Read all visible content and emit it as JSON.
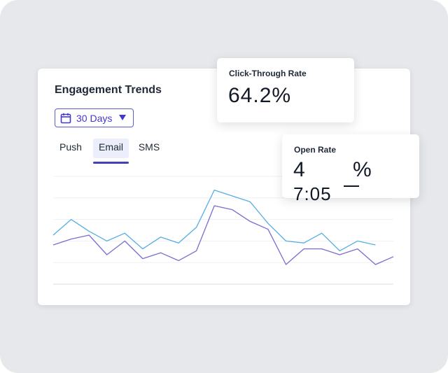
{
  "card": {
    "title": "Engagement Trends",
    "range_select": {
      "value": "30 Days"
    },
    "tabs": [
      {
        "label": "Push",
        "active": false
      },
      {
        "label": "Email",
        "active": true
      },
      {
        "label": "SMS",
        "active": false
      }
    ]
  },
  "popovers": {
    "click_through": {
      "title": "Click-Through Rate",
      "value": "64.2%"
    },
    "open_rate": {
      "title": "Open Rate",
      "value_visible": "4",
      "value_ghost": "7:05",
      "unit": "%"
    }
  },
  "colors": {
    "accent": "#4338ca",
    "series_blue": "#56aee3",
    "series_purple": "#7b6cd1",
    "background": "#e6e8eb"
  },
  "chart_data": {
    "type": "line",
    "x": [
      1,
      2,
      3,
      4,
      5,
      6,
      7,
      8,
      9,
      10,
      11,
      12,
      13,
      14,
      15,
      16,
      17,
      18,
      19,
      20
    ],
    "series": [
      {
        "values": [
          55,
          63,
          57,
          52,
          56,
          48,
          54,
          51,
          59,
          78,
          75,
          72,
          61,
          52,
          51,
          56,
          47,
          52,
          50,
          null
        ]
      },
      {
        "values": [
          50,
          53,
          55,
          45,
          52,
          43,
          46,
          42,
          47,
          70,
          68,
          62,
          58,
          40,
          48,
          48,
          45,
          48,
          40,
          44
        ]
      }
    ],
    "ylim": [
      30,
      85
    ],
    "grid": true
  }
}
